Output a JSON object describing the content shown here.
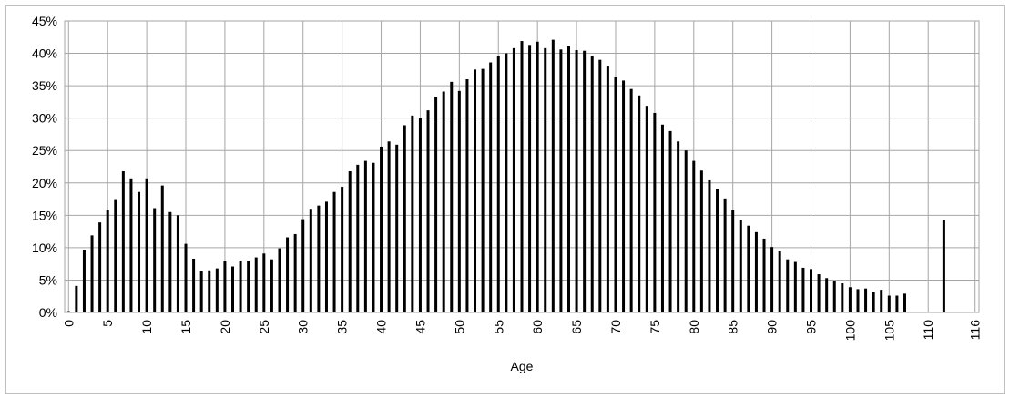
{
  "chart_data": {
    "type": "bar",
    "title": "",
    "xlabel": "Age",
    "ylabel": "",
    "ylim": [
      0,
      45
    ],
    "yticks": [
      "0%",
      "5%",
      "10%",
      "15%",
      "20%",
      "25%",
      "30%",
      "35%",
      "40%",
      "45%"
    ],
    "xtick_labels": [
      "0",
      "5",
      "10",
      "15",
      "20",
      "25",
      "30",
      "35",
      "40",
      "45",
      "50",
      "55",
      "60",
      "65",
      "70",
      "75",
      "80",
      "85",
      "90",
      "95",
      "100",
      "105",
      "110",
      "116"
    ],
    "x_range": [
      0,
      116
    ],
    "grid": true,
    "legend": "none",
    "bar_color": "#000000",
    "grid_color": "#a6a6a6",
    "ages": [
      0,
      1,
      2,
      3,
      4,
      5,
      6,
      7,
      8,
      9,
      10,
      11,
      12,
      13,
      14,
      15,
      16,
      17,
      18,
      19,
      20,
      21,
      22,
      23,
      24,
      25,
      26,
      27,
      28,
      29,
      30,
      31,
      32,
      33,
      34,
      35,
      36,
      37,
      38,
      39,
      40,
      41,
      42,
      43,
      44,
      45,
      46,
      47,
      48,
      49,
      50,
      51,
      52,
      53,
      54,
      55,
      56,
      57,
      58,
      59,
      60,
      61,
      62,
      63,
      64,
      65,
      66,
      67,
      68,
      69,
      70,
      71,
      72,
      73,
      74,
      75,
      76,
      77,
      78,
      79,
      80,
      81,
      82,
      83,
      84,
      85,
      86,
      87,
      88,
      89,
      90,
      91,
      92,
      93,
      94,
      95,
      96,
      97,
      98,
      99,
      100,
      101,
      102,
      103,
      104,
      105,
      106,
      107,
      112
    ],
    "values": [
      0.2,
      4.1,
      9.7,
      11.9,
      13.9,
      15.8,
      17.5,
      21.8,
      20.7,
      18.6,
      20.7,
      16.1,
      19.6,
      15.5,
      15.0,
      10.6,
      8.3,
      6.4,
      6.5,
      6.8,
      7.9,
      7.1,
      8.0,
      8.0,
      8.5,
      9.1,
      8.2,
      9.9,
      11.6,
      12.1,
      14.4,
      16.0,
      16.5,
      17.1,
      18.6,
      19.4,
      21.8,
      22.8,
      23.4,
      23.1,
      25.6,
      26.4,
      25.9,
      28.9,
      30.4,
      30.0,
      31.2,
      33.3,
      34.1,
      35.6,
      34.2,
      36.0,
      37.5,
      37.6,
      38.6,
      39.6,
      40.0,
      40.8,
      41.9,
      41.3,
      41.8,
      40.8,
      42.1,
      40.6,
      41.1,
      40.5,
      40.4,
      39.6,
      39.0,
      38.1,
      36.3,
      35.8,
      34.5,
      33.5,
      31.9,
      30.8,
      29.0,
      28.0,
      26.4,
      25.0,
      23.4,
      21.9,
      20.4,
      19.0,
      17.6,
      15.8,
      14.3,
      13.4,
      12.4,
      11.4,
      10.1,
      9.5,
      8.2,
      7.8,
      6.9,
      6.7,
      5.9,
      5.3,
      4.9,
      4.5,
      3.9,
      3.6,
      3.7,
      3.2,
      3.5,
      2.6,
      2.6,
      2.9,
      14.3
    ]
  }
}
